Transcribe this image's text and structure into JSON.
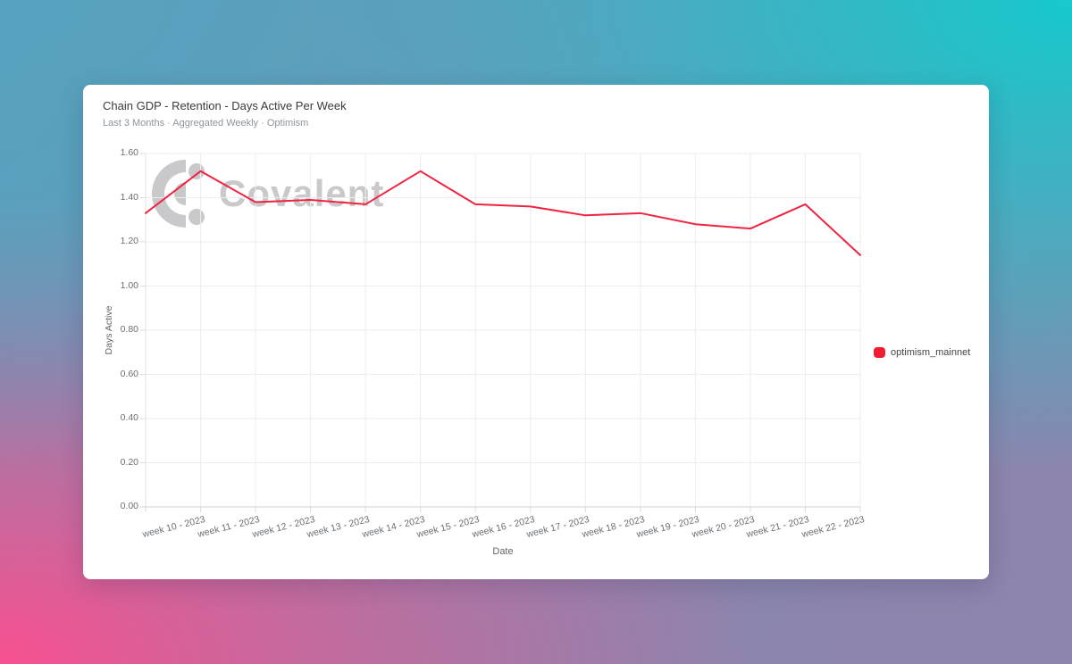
{
  "background": {
    "corner_colors": {
      "top_left": "#57a2be",
      "top_right": "#16c9cc",
      "bottom_left": "#f8508f",
      "bottom_right": "#8f84ad"
    }
  },
  "card": {
    "title": "Chain GDP - Retention - Days Active Per Week",
    "subtitle": "Last 3 Months · Aggregated Weekly · Optimism"
  },
  "watermark": {
    "brand": "Covalent",
    "color": "#c9c9cb"
  },
  "chart_data": {
    "type": "line",
    "title": "Chain GDP - Retention - Days Active Per Week",
    "xlabel": "Date",
    "ylabel": "Days Active",
    "ylim": [
      0,
      1.6
    ],
    "ytick_labels": [
      "0.00",
      "0.20",
      "0.40",
      "0.60",
      "0.80",
      "1.00",
      "1.20",
      "1.40",
      "1.60"
    ],
    "categories": [
      "week 10 - 2023",
      "week 11 - 2023",
      "week 12 - 2023",
      "week 13 - 2023",
      "week 14 - 2023",
      "week 15 - 2023",
      "week 16 - 2023",
      "week 17 - 2023",
      "week 18 - 2023",
      "week 19 - 2023",
      "week 20 - 2023",
      "week 21 - 2023",
      "week 22 - 2023"
    ],
    "series": [
      {
        "name": "optimism_mainnet",
        "color": "#ee2440",
        "unlabeled_lead_in_value": 1.33,
        "values": [
          1.52,
          1.38,
          1.39,
          1.37,
          1.52,
          1.37,
          1.36,
          1.32,
          1.33,
          1.28,
          1.26,
          1.37,
          1.14
        ]
      }
    ],
    "grid": true,
    "legend": {
      "position": "right",
      "entries": [
        {
          "label": "optimism_mainnet",
          "color": "#ee1d31"
        }
      ]
    }
  }
}
